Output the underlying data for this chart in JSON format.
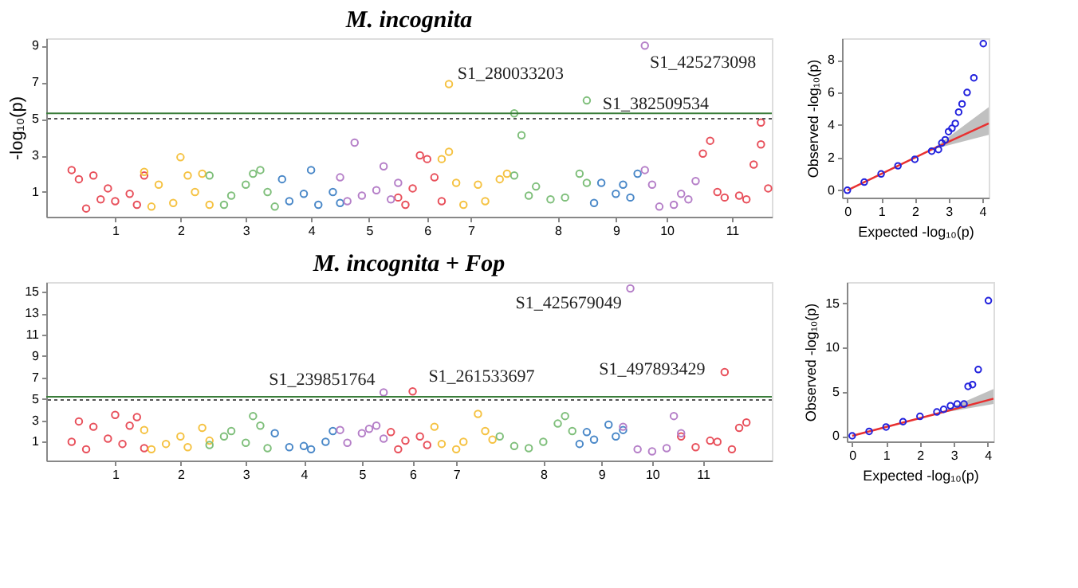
{
  "chart_data": [
    {
      "type": "scatter",
      "title": "M. incognita",
      "ylabel": "-log₁₀(p)",
      "marker": "circle",
      "grid": false,
      "ylim": [
        -0.35,
        9.4
      ],
      "yticks": [
        1,
        3,
        5,
        7,
        9
      ],
      "categories": [
        null,
        null,
        null,
        null,
        null,
        null,
        null,
        null,
        null,
        "1",
        null,
        null,
        null,
        null,
        null,
        null,
        null,
        null,
        "2",
        null,
        null,
        null,
        null,
        null,
        null,
        null,
        null,
        "3",
        null,
        null,
        null,
        null,
        null,
        null,
        null,
        null,
        "4",
        null,
        null,
        null,
        null,
        null,
        null,
        null,
        "5",
        null,
        null,
        null,
        null,
        null,
        null,
        null,
        "6",
        null,
        null,
        null,
        null,
        null,
        "7",
        null,
        null,
        null,
        null,
        null,
        null,
        null,
        null,
        null,
        null,
        null,
        "8",
        null,
        null,
        null,
        null,
        null,
        null,
        null,
        "9",
        null,
        null,
        null,
        null,
        null,
        null,
        "10",
        null,
        null,
        null,
        null,
        null,
        null,
        null,
        null,
        "11",
        null,
        null,
        null,
        null,
        null
      ],
      "ref_lines": [
        {
          "axis": "y",
          "value": 5.3,
          "color": "#3a7d3a",
          "line_style": "solid"
        },
        {
          "axis": "y",
          "value": 5.0,
          "color": "#555555",
          "line_style": "dotted"
        }
      ],
      "annotations": [
        "S1_280033203",
        "S1_382509534",
        "S1_425273098"
      ],
      "series": [
        {
          "color": "#e8505b",
          "values": [
            null,
            null,
            null,
            2.2,
            1.7,
            0.1,
            1.9,
            0.6,
            1.2,
            0.5,
            null,
            0.9,
            0.3,
            1.9,
            null,
            null,
            null,
            null,
            null,
            null,
            null,
            null,
            null,
            null,
            null,
            null,
            null,
            null,
            null,
            null,
            null,
            null,
            null,
            null,
            null,
            null,
            null,
            null,
            null,
            null,
            null,
            null,
            null,
            null,
            null,
            null,
            null,
            null,
            0.7,
            0.3,
            1.2,
            3.0,
            2.8,
            1.8,
            0.5,
            null,
            null,
            null,
            null,
            null,
            null,
            null,
            null,
            null,
            null,
            null,
            null,
            null,
            null,
            null,
            null,
            null,
            null,
            null,
            null,
            null,
            null,
            null,
            null,
            null,
            null,
            null,
            null,
            null,
            null,
            null,
            null,
            null,
            null,
            null,
            3.1,
            3.8,
            1.0,
            0.7,
            null,
            0.8,
            0.6,
            2.5,
            3.6,
            1.2
          ]
        },
        {
          "color": "#f5c242",
          "values": [
            null,
            null,
            null,
            null,
            null,
            null,
            null,
            null,
            null,
            null,
            null,
            null,
            null,
            2.1,
            0.2,
            1.4,
            null,
            0.4,
            2.9,
            1.9,
            1.0,
            2.0,
            0.3,
            null,
            null,
            null,
            null,
            null,
            null,
            null,
            null,
            null,
            null,
            null,
            null,
            null,
            null,
            null,
            null,
            null,
            null,
            null,
            null,
            null,
            null,
            null,
            null,
            null,
            null,
            null,
            null,
            null,
            null,
            null,
            2.8,
            3.2,
            1.5,
            0.3,
            null,
            1.4,
            0.5,
            null,
            1.7,
            2.0,
            null,
            null,
            null,
            null,
            null,
            null,
            null,
            null,
            null,
            null,
            null,
            null,
            null,
            null,
            null,
            null,
            null,
            null,
            null,
            null,
            null,
            null,
            null,
            null,
            null,
            null,
            null,
            null,
            null,
            null,
            null,
            null,
            null,
            null,
            null,
            null
          ]
        },
        {
          "color": "#7fbf7b",
          "values": [
            null,
            null,
            null,
            null,
            null,
            null,
            null,
            null,
            null,
            null,
            null,
            null,
            null,
            null,
            null,
            null,
            null,
            null,
            null,
            null,
            null,
            null,
            1.9,
            null,
            0.3,
            0.8,
            null,
            1.4,
            2.0,
            2.2,
            1.0,
            0.2,
            null,
            null,
            null,
            null,
            null,
            null,
            null,
            null,
            null,
            null,
            null,
            null,
            null,
            null,
            null,
            null,
            null,
            null,
            null,
            null,
            null,
            null,
            null,
            null,
            null,
            null,
            null,
            null,
            null,
            null,
            null,
            null,
            1.9,
            4.1,
            0.8,
            1.3,
            null,
            0.6,
            null,
            0.7,
            null,
            2.0,
            1.5,
            null,
            null,
            null,
            null,
            null,
            null,
            null,
            null,
            null,
            null,
            null,
            null,
            null,
            null,
            null,
            null,
            null,
            null,
            null,
            null,
            null,
            null,
            null,
            null,
            null
          ]
        },
        {
          "color": "#4a88c8",
          "values": [
            null,
            null,
            null,
            null,
            null,
            null,
            null,
            null,
            null,
            null,
            null,
            null,
            null,
            null,
            null,
            null,
            null,
            null,
            null,
            null,
            null,
            null,
            null,
            null,
            null,
            null,
            null,
            null,
            null,
            null,
            null,
            null,
            1.7,
            0.5,
            null,
            0.9,
            2.2,
            0.3,
            null,
            1.0,
            0.4,
            null,
            null,
            null,
            null,
            null,
            null,
            null,
            null,
            null,
            null,
            null,
            null,
            null,
            null,
            null,
            null,
            null,
            null,
            null,
            null,
            null,
            null,
            null,
            null,
            null,
            null,
            null,
            null,
            null,
            null,
            null,
            null,
            null,
            null,
            0.4,
            1.5,
            null,
            0.9,
            1.4,
            0.7,
            2.0,
            null,
            null,
            null,
            null,
            null,
            null,
            null,
            null,
            null,
            null,
            null,
            null,
            null,
            null,
            null,
            null,
            null,
            null
          ]
        },
        {
          "color": "#b57fc8",
          "values": [
            null,
            null,
            null,
            null,
            null,
            null,
            null,
            null,
            null,
            null,
            null,
            null,
            null,
            null,
            null,
            null,
            null,
            null,
            null,
            null,
            null,
            null,
            null,
            null,
            null,
            null,
            null,
            null,
            null,
            null,
            null,
            null,
            null,
            null,
            null,
            null,
            null,
            null,
            null,
            null,
            1.8,
            0.5,
            3.7,
            0.8,
            null,
            1.1,
            2.4,
            0.6,
            1.5,
            null,
            null,
            null,
            null,
            null,
            null,
            null,
            null,
            null,
            null,
            null,
            null,
            null,
            null,
            null,
            null,
            null,
            null,
            null,
            null,
            null,
            null,
            null,
            null,
            null,
            null,
            null,
            null,
            null,
            null,
            null,
            null,
            null,
            2.2,
            1.4,
            0.2,
            null,
            0.3,
            0.9,
            0.6,
            1.6,
            null,
            null,
            null,
            null,
            null,
            null,
            null,
            null,
            null,
            null
          ]
        },
        {
          "color": "#e8505b",
          "values": [
            null,
            null,
            null,
            null,
            null,
            null,
            null,
            null,
            null,
            null,
            null,
            null,
            null,
            null,
            null,
            null,
            null,
            null,
            null,
            null,
            null,
            null,
            null,
            null,
            null,
            null,
            null,
            null,
            null,
            null,
            null,
            null,
            null,
            null,
            null,
            null,
            null,
            null,
            null,
            null,
            null,
            null,
            null,
            null,
            null,
            null,
            null,
            null,
            null,
            null,
            null,
            null,
            null,
            null,
            null,
            null,
            null,
            null,
            null,
            null,
            null,
            null,
            null,
            null,
            null,
            null,
            null,
            null,
            null,
            null,
            null,
            null,
            null,
            null,
            null,
            null,
            null,
            null,
            null,
            null,
            null,
            null,
            null,
            null,
            null,
            null,
            null,
            null,
            null,
            null,
            null,
            null,
            null,
            null,
            null,
            null,
            null,
            null,
            4.8,
            null
          ]
        },
        {
          "color": "#f5c242",
          "values": [
            null,
            null,
            null,
            null,
            null,
            null,
            null,
            null,
            null,
            null,
            null,
            null,
            null,
            null,
            null,
            null,
            null,
            null,
            null,
            null,
            null,
            null,
            null,
            null,
            null,
            null,
            null,
            null,
            null,
            null,
            null,
            null,
            null,
            null,
            null,
            null,
            null,
            null,
            null,
            null,
            null,
            null,
            null,
            null,
            null,
            null,
            null,
            null,
            null,
            null,
            null,
            null,
            null,
            null,
            null,
            6.9,
            null,
            null,
            null,
            null,
            null,
            null,
            null,
            null,
            null,
            null,
            null,
            null,
            null,
            null,
            null,
            null,
            null,
            null,
            null,
            null,
            null,
            null,
            null,
            null,
            null,
            null,
            null,
            null,
            null,
            null,
            null,
            null,
            null,
            null,
            null,
            null,
            null,
            null,
            null,
            null,
            null,
            null,
            null,
            null
          ]
        },
        {
          "color": "#7fbf7b",
          "values": [
            null,
            null,
            null,
            null,
            null,
            null,
            null,
            null,
            null,
            null,
            null,
            null,
            null,
            null,
            null,
            null,
            null,
            null,
            null,
            null,
            null,
            null,
            null,
            null,
            null,
            null,
            null,
            null,
            null,
            null,
            null,
            null,
            null,
            null,
            null,
            null,
            null,
            null,
            null,
            null,
            null,
            null,
            null,
            null,
            null,
            null,
            null,
            null,
            null,
            null,
            null,
            null,
            null,
            null,
            null,
            null,
            null,
            null,
            null,
            null,
            null,
            null,
            null,
            null,
            5.3,
            null,
            null,
            null,
            null,
            null,
            null,
            null,
            null,
            null,
            6.0,
            null,
            null,
            null,
            null,
            null,
            null,
            null,
            null,
            null,
            null,
            null,
            null,
            null,
            null,
            null,
            null,
            null,
            null,
            null,
            null,
            null,
            null,
            null,
            null,
            null
          ]
        },
        {
          "color": "#b57fc8",
          "values": [
            null,
            null,
            null,
            null,
            null,
            null,
            null,
            null,
            null,
            null,
            null,
            null,
            null,
            null,
            null,
            null,
            null,
            null,
            null,
            null,
            null,
            null,
            null,
            null,
            null,
            null,
            null,
            null,
            null,
            null,
            null,
            null,
            null,
            null,
            null,
            null,
            null,
            null,
            null,
            null,
            null,
            null,
            null,
            null,
            null,
            null,
            null,
            null,
            null,
            null,
            null,
            null,
            null,
            null,
            null,
            null,
            null,
            null,
            null,
            null,
            null,
            null,
            null,
            null,
            null,
            null,
            null,
            null,
            null,
            null,
            null,
            null,
            null,
            null,
            null,
            null,
            null,
            null,
            null,
            null,
            null,
            null,
            9.0,
            null,
            null,
            null,
            null,
            null,
            null,
            null,
            null,
            null,
            null,
            null,
            null,
            null,
            null,
            null,
            null,
            null
          ]
        }
      ]
    },
    {
      "type": "scatter",
      "xlabel": "Expected -log₁₀(p)",
      "ylabel": "Observed -log₁₀(p)",
      "grid": false,
      "xlim": [
        -0.16,
        4.19
      ],
      "ylim": [
        -0.45,
        9.33
      ],
      "xticks": [
        0,
        1,
        2,
        3,
        4
      ],
      "yticks": [
        0,
        2,
        4,
        6,
        8
      ],
      "series": [
        {
          "type": "line",
          "color": "#e83030",
          "line_style": "solid",
          "x": [
            0,
            2.5,
            4.19
          ],
          "values": [
            0,
            2.5,
            4.1
          ],
          "lower": [
            0,
            2.5,
            3.4
          ],
          "upper": [
            0,
            2.5,
            5.1
          ]
        },
        {
          "color": "#2222dd",
          "marker": "circle",
          "x": [
            0,
            0.5,
            1,
            1.5,
            2,
            2.5,
            2.7,
            2.8,
            2.9,
            3.0,
            3.1,
            3.2,
            3.3,
            3.4,
            3.55,
            3.75,
            4.03
          ],
          "values": [
            0,
            0.5,
            1,
            1.5,
            1.9,
            2.4,
            2.5,
            2.9,
            3.1,
            3.6,
            3.8,
            4.1,
            4.8,
            5.3,
            6.0,
            6.9,
            9.0
          ]
        }
      ]
    },
    {
      "type": "scatter",
      "title": "M. incognita + Fop",
      "marker": "circle",
      "grid": false,
      "ylim": [
        -0.75,
        15.9
      ],
      "yticks": [
        1,
        3,
        5,
        7,
        9,
        11,
        13,
        15
      ],
      "categories": [
        null,
        null,
        null,
        null,
        null,
        null,
        null,
        null,
        null,
        "1",
        null,
        null,
        null,
        null,
        null,
        null,
        null,
        null,
        "2",
        null,
        null,
        null,
        null,
        null,
        null,
        null,
        null,
        "3",
        null,
        null,
        null,
        null,
        null,
        null,
        null,
        "4",
        null,
        null,
        null,
        null,
        null,
        null,
        null,
        "5",
        null,
        null,
        null,
        null,
        null,
        null,
        "6",
        null,
        null,
        null,
        null,
        null,
        "7",
        null,
        null,
        null,
        null,
        null,
        null,
        null,
        null,
        null,
        null,
        null,
        "8",
        null,
        null,
        null,
        null,
        null,
        null,
        null,
        "9",
        null,
        null,
        null,
        null,
        null,
        null,
        "10",
        null,
        null,
        null,
        null,
        null,
        null,
        "11",
        null,
        null,
        null,
        null,
        null,
        null,
        null,
        null,
        null
      ],
      "ref_lines": [
        {
          "axis": "y",
          "value": 5.2,
          "color": "#3a7d3a",
          "line_style": "solid"
        },
        {
          "axis": "y",
          "value": 4.9,
          "color": "#555555",
          "line_style": "dotted"
        }
      ],
      "annotations": [
        "S1_239851764",
        "S1_261533697",
        "S1_425679049",
        "S1_497893429"
      ],
      "series": [
        {
          "color": "#e8505b",
          "values": [
            null,
            null,
            null,
            1.0,
            2.9,
            0.3,
            2.4,
            null,
            1.3,
            3.5,
            0.8,
            2.5,
            3.3,
            0.4,
            null,
            null,
            null,
            null,
            null,
            null,
            null,
            null,
            null,
            null,
            null,
            null,
            null,
            null,
            null,
            null,
            null,
            null,
            null,
            null,
            null,
            null,
            null,
            null,
            null,
            null,
            null,
            null,
            null,
            null,
            null,
            null,
            null,
            1.9,
            0.3,
            1.1,
            null,
            1.5,
            0.7,
            null,
            null,
            null,
            null,
            null,
            null,
            null,
            null,
            null,
            null,
            null,
            null,
            null,
            null,
            null,
            null,
            null,
            null,
            null,
            null,
            null,
            null,
            null,
            null,
            null,
            null,
            null,
            null,
            null,
            null,
            null,
            null,
            null,
            null,
            1.5,
            null,
            0.5,
            null,
            1.1,
            1.0,
            null,
            0.3,
            2.3,
            2.8,
            null,
            null,
            null
          ]
        },
        {
          "color": "#f5c242",
          "values": [
            null,
            null,
            null,
            null,
            null,
            null,
            null,
            null,
            null,
            null,
            null,
            null,
            null,
            2.1,
            0.3,
            null,
            0.8,
            null,
            1.5,
            0.5,
            null,
            2.3,
            1.1,
            null,
            null,
            null,
            null,
            null,
            null,
            null,
            null,
            null,
            null,
            null,
            null,
            null,
            null,
            null,
            null,
            null,
            null,
            null,
            null,
            null,
            null,
            null,
            null,
            null,
            null,
            null,
            null,
            null,
            null,
            2.4,
            0.8,
            null,
            0.3,
            1.0,
            null,
            3.6,
            2.0,
            1.2,
            null,
            null,
            null,
            null,
            null,
            null,
            null,
            null,
            null,
            null,
            null,
            null,
            null,
            null,
            null,
            null,
            null,
            null,
            null,
            null,
            null,
            null,
            null,
            null,
            null,
            null,
            null,
            null,
            null,
            null,
            null,
            null,
            null,
            null,
            null,
            null,
            null,
            null
          ]
        },
        {
          "color": "#7fbf7b",
          "values": [
            null,
            null,
            null,
            null,
            null,
            null,
            null,
            null,
            null,
            null,
            null,
            null,
            null,
            null,
            null,
            null,
            null,
            null,
            null,
            null,
            null,
            null,
            0.7,
            null,
            1.5,
            2.0,
            null,
            0.9,
            3.4,
            2.5,
            0.4,
            null,
            null,
            null,
            null,
            null,
            null,
            null,
            null,
            null,
            null,
            null,
            null,
            null,
            null,
            null,
            null,
            null,
            null,
            null,
            null,
            null,
            null,
            null,
            null,
            null,
            null,
            null,
            null,
            null,
            null,
            null,
            1.5,
            null,
            0.6,
            null,
            0.4,
            null,
            1.0,
            null,
            2.7,
            3.4,
            2.0,
            null,
            null,
            null,
            null,
            null,
            null,
            null,
            null,
            null,
            null,
            null,
            null,
            null,
            null,
            null,
            null,
            null,
            null,
            null,
            null,
            null,
            null,
            null,
            null,
            null,
            null,
            null
          ]
        },
        {
          "color": "#4a88c8",
          "values": [
            null,
            null,
            null,
            null,
            null,
            null,
            null,
            null,
            null,
            null,
            null,
            null,
            null,
            null,
            null,
            null,
            null,
            null,
            null,
            null,
            null,
            null,
            null,
            null,
            null,
            null,
            null,
            null,
            null,
            null,
            null,
            1.8,
            null,
            0.5,
            null,
            0.6,
            0.3,
            null,
            1.0,
            2.0,
            null,
            null,
            null,
            null,
            null,
            null,
            null,
            null,
            null,
            null,
            null,
            null,
            null,
            null,
            null,
            null,
            null,
            null,
            null,
            null,
            null,
            null,
            null,
            null,
            null,
            null,
            null,
            null,
            null,
            null,
            null,
            null,
            null,
            0.8,
            1.9,
            1.2,
            null,
            2.6,
            1.5,
            2.1,
            null,
            null,
            null,
            null,
            null,
            null,
            null,
            null,
            null,
            null,
            null,
            null,
            null,
            null,
            null,
            null,
            null,
            null,
            null,
            null
          ]
        },
        {
          "color": "#b57fc8",
          "values": [
            null,
            null,
            null,
            null,
            null,
            null,
            null,
            null,
            null,
            null,
            null,
            null,
            null,
            null,
            null,
            null,
            null,
            null,
            null,
            null,
            null,
            null,
            null,
            null,
            null,
            null,
            null,
            null,
            null,
            null,
            null,
            null,
            null,
            null,
            null,
            null,
            null,
            null,
            null,
            null,
            2.1,
            0.9,
            null,
            1.8,
            2.2,
            2.5,
            1.3,
            null,
            null,
            null,
            null,
            null,
            null,
            null,
            null,
            null,
            null,
            null,
            null,
            null,
            null,
            null,
            null,
            null,
            null,
            null,
            null,
            null,
            null,
            null,
            null,
            null,
            null,
            null,
            null,
            null,
            null,
            null,
            null,
            2.4,
            null,
            0.3,
            null,
            0.1,
            null,
            0.4,
            3.4,
            1.8,
            null,
            null,
            null,
            null,
            null,
            null,
            null,
            null,
            null,
            null,
            null,
            null
          ]
        },
        {
          "color": "#e8505b",
          "values": [
            null,
            null,
            null,
            null,
            null,
            null,
            null,
            null,
            null,
            null,
            null,
            null,
            null,
            null,
            null,
            null,
            null,
            null,
            null,
            null,
            null,
            null,
            null,
            null,
            null,
            null,
            null,
            null,
            null,
            null,
            null,
            null,
            null,
            null,
            null,
            null,
            null,
            null,
            null,
            null,
            null,
            null,
            null,
            null,
            null,
            null,
            null,
            null,
            null,
            null,
            5.7,
            null,
            null,
            null,
            null,
            null,
            null,
            null,
            null,
            null,
            null,
            null,
            null,
            null,
            null,
            null,
            null,
            null,
            null,
            null,
            null,
            null,
            null,
            null,
            null,
            null,
            null,
            null,
            null,
            null,
            null,
            null,
            null,
            null,
            null,
            null,
            null,
            null,
            null,
            null,
            null,
            null,
            null,
            7.5,
            null,
            null,
            null,
            null,
            null,
            null
          ]
        },
        {
          "color": "#b57fc8",
          "values": [
            null,
            null,
            null,
            null,
            null,
            null,
            null,
            null,
            null,
            null,
            null,
            null,
            null,
            null,
            null,
            null,
            null,
            null,
            null,
            null,
            null,
            null,
            null,
            null,
            null,
            null,
            null,
            null,
            null,
            null,
            null,
            null,
            null,
            null,
            null,
            null,
            null,
            null,
            null,
            null,
            null,
            null,
            null,
            null,
            null,
            null,
            5.6,
            null,
            null,
            null,
            null,
            null,
            null,
            null,
            null,
            null,
            null,
            null,
            null,
            null,
            null,
            null,
            null,
            null,
            null,
            null,
            null,
            null,
            null,
            null,
            null,
            null,
            null,
            null,
            null,
            null,
            null,
            null,
            null,
            null,
            15.3,
            null,
            null,
            null,
            null,
            null,
            null,
            null,
            null,
            null,
            null,
            null,
            null,
            null,
            null,
            null,
            null,
            null,
            null,
            null
          ]
        }
      ]
    },
    {
      "type": "scatter",
      "xlabel": "Expected -log₁₀(p)",
      "ylabel": "Observed -log₁₀(p)",
      "grid": false,
      "xlim": [
        -0.16,
        4.17
      ],
      "ylim": [
        -0.63,
        17.4
      ],
      "xticks": [
        0,
        1,
        2,
        3,
        4
      ],
      "yticks": [
        0,
        5,
        10,
        15
      ],
      "series": [
        {
          "type": "line",
          "color": "#e83030",
          "line_style": "solid",
          "x": [
            0,
            2.5,
            4.17
          ],
          "values": [
            0,
            2.5,
            4.2
          ],
          "lower": [
            0,
            2.5,
            3.6
          ],
          "upper": [
            0,
            2.5,
            5.3
          ]
        },
        {
          "color": "#2222dd",
          "marker": "circle",
          "x": [
            0,
            0.5,
            1,
            1.5,
            2,
            2.5,
            2.7,
            2.9,
            3.1,
            3.3,
            3.42,
            3.55,
            3.72,
            4.02
          ],
          "values": [
            0,
            0.5,
            1,
            1.6,
            2.2,
            2.7,
            3.0,
            3.4,
            3.6,
            3.6,
            5.6,
            5.8,
            7.5,
            15.3
          ]
        }
      ]
    }
  ]
}
